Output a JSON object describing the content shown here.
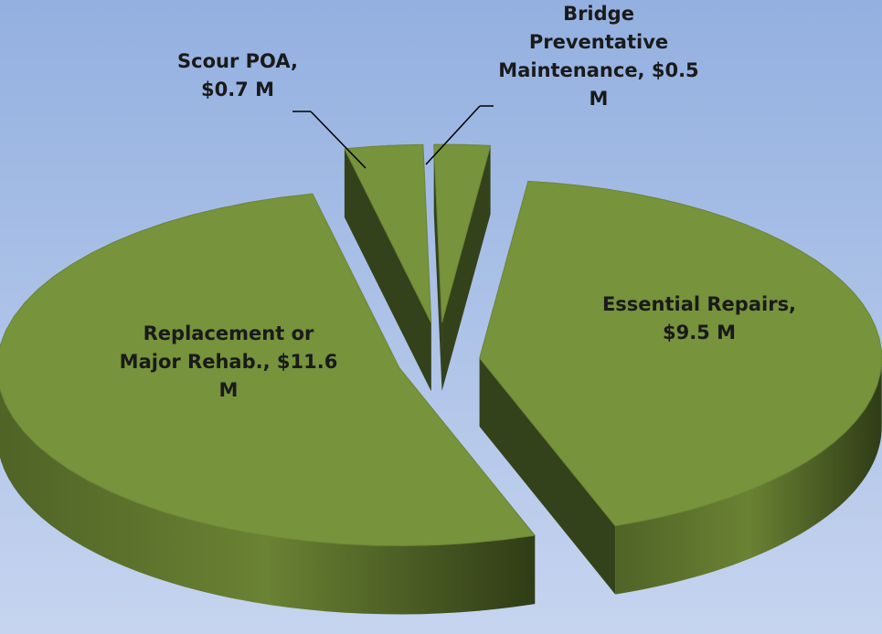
{
  "chart_data": {
    "type": "pie",
    "categories": [
      "Bridge Preventative Maintenance,",
      "Essential Repairs,",
      "Replacement or Major Rehab.,",
      "Scour POA,"
    ],
    "values": [
      0.5,
      9.5,
      11.6,
      0.7
    ],
    "value_labels": [
      "$0.5 M",
      "$9.5 M",
      "$11.6 M",
      "$0.7 M"
    ],
    "color": "#77933c"
  }
}
